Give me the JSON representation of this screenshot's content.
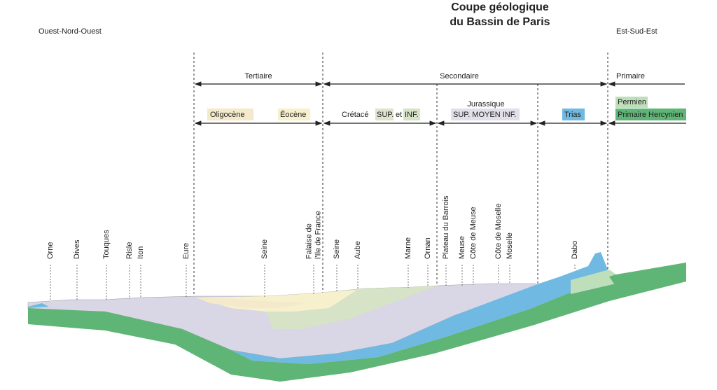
{
  "header": {
    "title": [
      "Coupe géologique",
      "du Bassin de Paris"
    ],
    "west": "Ouest-Nord-Ouest",
    "east": "Est-Sud-Est"
  },
  "eras": [
    "Tertiaire",
    "Secondaire",
    "Primaire"
  ],
  "legend": {
    "oligocene": "Oligocène",
    "eocene": "Éocène",
    "cretace": "Crétacé",
    "cretace_sup": "SUP.",
    "et": "et",
    "cretace_inf": "INF.",
    "jurassique": "Jurassique",
    "jurassique_divisions": "SUP. MOYEN INF.",
    "trias": "Trias",
    "permien": "Permien",
    "hercynien": "Primaire Hercynien"
  },
  "places": [
    [
      "Orne"
    ],
    [
      "Dives"
    ],
    [
      "Touques"
    ],
    [
      "Risle"
    ],
    [
      "Iton"
    ],
    [
      "Eure"
    ],
    [
      "Seine"
    ],
    [
      "Falaise de",
      "l'Ile de France"
    ],
    [
      "Seine"
    ],
    [
      "Aube"
    ],
    [
      "Marne"
    ],
    [
      "Ornan"
    ],
    [
      "Plateau du Barrois"
    ],
    [
      "Meuse"
    ],
    [
      "Côte de Meuse"
    ],
    [
      "Côte de Moselle"
    ],
    [
      "Moselle"
    ],
    [
      "Dabo"
    ]
  ]
}
